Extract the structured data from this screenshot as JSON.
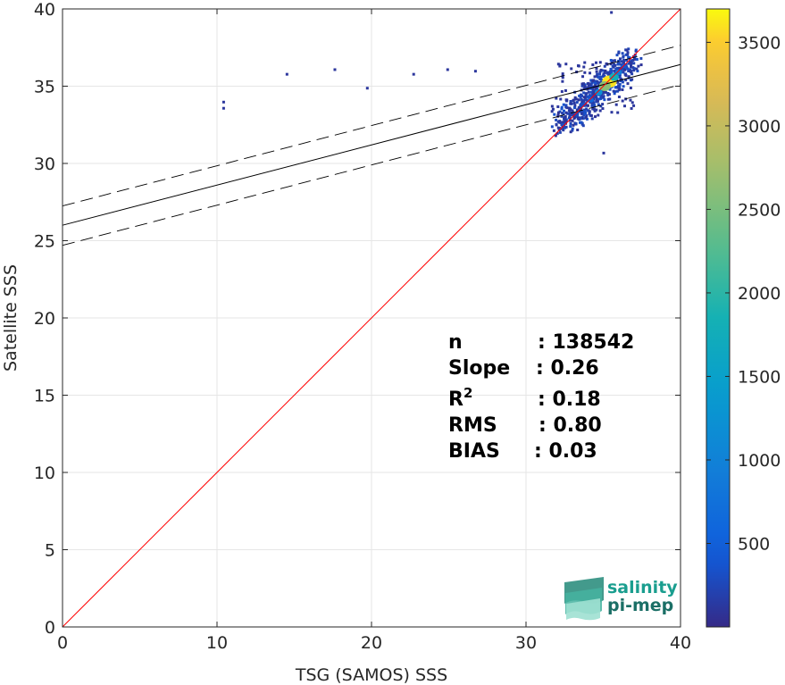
{
  "chart_data": {
    "type": "heatmap",
    "xlabel": "TSG (SAMOS) SSS",
    "ylabel": "Satellite SSS",
    "xlim": [
      0,
      40
    ],
    "ylim": [
      0,
      40
    ],
    "x_ticks": [
      "0",
      "10",
      "20",
      "30",
      "40"
    ],
    "y_ticks": [
      "0",
      "5",
      "10",
      "15",
      "20",
      "25",
      "30",
      "35",
      "40"
    ],
    "grid": true,
    "colorbar": {
      "ticks": [
        "500",
        "1000",
        "1500",
        "2000",
        "2500",
        "3000",
        "3500"
      ],
      "tick_values": [
        500,
        1000,
        1500,
        2000,
        2500,
        3000,
        3500
      ],
      "range": [
        0,
        3700
      ],
      "colormap": "parula"
    },
    "lines": {
      "identity": {
        "slope": 1,
        "intercept": 0,
        "color": "#ff0000"
      },
      "regression": {
        "slope": 0.26,
        "intercept": 26.0,
        "color": "#000000"
      },
      "regression_bounds": [
        {
          "slope": 0.26,
          "intercept": 27.25,
          "style": "dashed"
        },
        {
          "slope": 0.26,
          "intercept": 24.7,
          "style": "dashed"
        }
      ]
    },
    "density_core": [
      {
        "x": 35.4,
        "y": 35.3,
        "count": 3600
      },
      {
        "x": 35.1,
        "y": 35.0,
        "count": 2600
      },
      {
        "x": 35.7,
        "y": 35.6,
        "count": 1800
      },
      {
        "x": 34.7,
        "y": 34.6,
        "count": 1200
      },
      {
        "x": 36.0,
        "y": 35.9,
        "count": 900
      },
      {
        "x": 34.2,
        "y": 34.1,
        "count": 600
      },
      {
        "x": 33.6,
        "y": 33.8,
        "count": 300
      },
      {
        "x": 36.3,
        "y": 36.3,
        "count": 400
      }
    ],
    "outliers": [
      {
        "x": 10.4,
        "y": 34.0
      },
      {
        "x": 10.4,
        "y": 33.6
      },
      {
        "x": 14.5,
        "y": 35.8
      },
      {
        "x": 17.6,
        "y": 36.1
      },
      {
        "x": 19.7,
        "y": 34.9
      },
      {
        "x": 22.7,
        "y": 35.8
      },
      {
        "x": 24.9,
        "y": 36.1
      },
      {
        "x": 26.7,
        "y": 36.0
      },
      {
        "x": 35.0,
        "y": 30.7
      },
      {
        "x": 35.5,
        "y": 39.8
      }
    ],
    "stats": [
      {
        "label": "n",
        "value": ": 138542"
      },
      {
        "label": "Slope",
        "value": ": 0.26"
      },
      {
        "label": "R",
        "sup": "2",
        "value": ": 0.18"
      },
      {
        "label": "RMS",
        "value": ": 0.80"
      },
      {
        "label": "BIAS",
        "value": ": 0.03"
      }
    ]
  },
  "logo": {
    "line1": "salinity",
    "line2": "pi-mep"
  },
  "colors": {
    "logo_text": "#1a9e8f",
    "logo_shape": "#3fb8a4"
  }
}
